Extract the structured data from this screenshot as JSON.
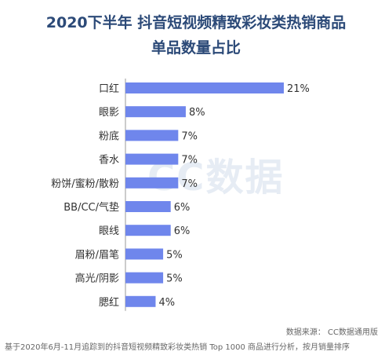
{
  "title_line1": "2020下半年 抖音短视频精致彩妆类热销商品",
  "title_line2": "单品数量占比",
  "watermark": "CC数据",
  "footer": {
    "source": "数据来源：  CC数据通用版",
    "note": "基于2020年6月-11月追踪到的抖音短视频精致彩妆类热销 Top 1000 商品进行分析，按月销量排序"
  },
  "colors": {
    "bar": "#6f86ec",
    "title": "#2c4a78"
  },
  "chart_data": {
    "type": "bar",
    "orientation": "horizontal",
    "categories": [
      "口红",
      "眼影",
      "粉底",
      "香水",
      "粉饼/蜜粉/散粉",
      "BB/CC/气垫",
      "眼线",
      "眉粉/眉笔",
      "高光/阴影",
      "腮红"
    ],
    "values": [
      21,
      8,
      7,
      7,
      7,
      6,
      6,
      5,
      5,
      4
    ],
    "value_labels": [
      "21%",
      "8%",
      "7%",
      "7%",
      "7%",
      "6%",
      "6%",
      "5%",
      "5%",
      "4%"
    ],
    "unit": "%"
  }
}
